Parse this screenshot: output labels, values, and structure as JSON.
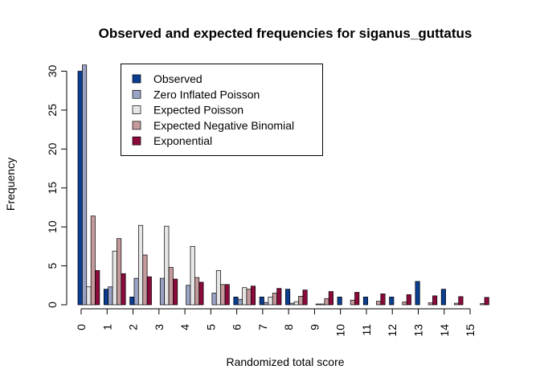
{
  "chart_data": {
    "type": "bar",
    "title": "Observed and expected frequencies for siganus_guttatus",
    "xlabel": "Randomized total score",
    "ylabel": "Frequency",
    "ylim": [
      0,
      30
    ],
    "yticks": [
      0,
      5,
      10,
      15,
      20,
      25,
      30
    ],
    "categories": [
      "0",
      "1",
      "2",
      "3",
      "4",
      "5",
      "6",
      "7",
      "8",
      "9",
      "10",
      "11",
      "12",
      "13",
      "14",
      "15"
    ],
    "legend_position": "top-left",
    "series": [
      {
        "name": "Observed",
        "color": "#0b3d91",
        "values": [
          30,
          2,
          1,
          0,
          0,
          0,
          1,
          1,
          2,
          0,
          1,
          1,
          1,
          3,
          2,
          0
        ]
      },
      {
        "name": "Zero Inflated Poisson",
        "color": "#9aa3c4",
        "values": [
          30.8,
          2.3,
          3.4,
          3.4,
          2.5,
          1.5,
          0.7,
          0.3,
          0.2,
          0.1,
          0.0,
          0.0,
          0.0,
          0.0,
          0.0,
          0.0
        ]
      },
      {
        "name": "Expected Poisson",
        "color": "#e6e6e6",
        "values": [
          2.3,
          6.9,
          10.2,
          10.1,
          7.5,
          4.4,
          2.2,
          1.0,
          0.4,
          0.1,
          0.0,
          0.0,
          0.0,
          0.0,
          0.0,
          0.0
        ]
      },
      {
        "name": "Expected Negative Binomial",
        "color": "#c49a9c",
        "values": [
          11.4,
          8.5,
          6.4,
          4.8,
          3.5,
          2.6,
          2.0,
          1.5,
          1.1,
          0.8,
          0.6,
          0.45,
          0.35,
          0.25,
          0.2,
          0.15
        ]
      },
      {
        "name": "Exponential",
        "color": "#8b0a3c",
        "values": [
          4.4,
          4.0,
          3.6,
          3.3,
          2.9,
          2.6,
          2.4,
          2.1,
          1.9,
          1.7,
          1.6,
          1.4,
          1.3,
          1.15,
          1.05,
          0.95
        ]
      }
    ]
  }
}
